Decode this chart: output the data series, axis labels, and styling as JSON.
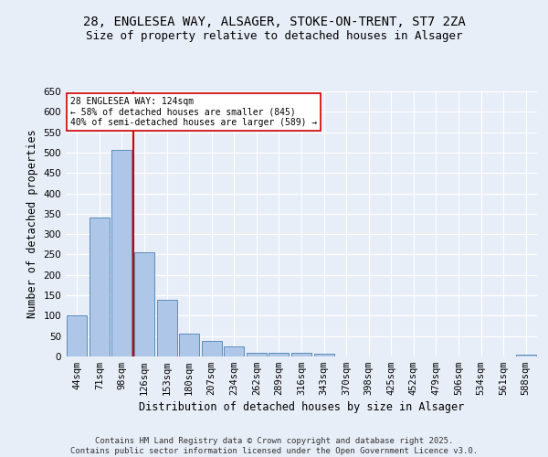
{
  "title1": "28, ENGLESEA WAY, ALSAGER, STOKE-ON-TRENT, ST7 2ZA",
  "title2": "Size of property relative to detached houses in Alsager",
  "xlabel": "Distribution of detached houses by size in Alsager",
  "ylabel": "Number of detached properties",
  "categories": [
    "44sqm",
    "71sqm",
    "98sqm",
    "126sqm",
    "153sqm",
    "180sqm",
    "207sqm",
    "234sqm",
    "262sqm",
    "289sqm",
    "316sqm",
    "343sqm",
    "370sqm",
    "398sqm",
    "425sqm",
    "452sqm",
    "479sqm",
    "506sqm",
    "534sqm",
    "561sqm",
    "588sqm"
  ],
  "values": [
    100,
    340,
    507,
    255,
    140,
    55,
    37,
    25,
    10,
    10,
    10,
    7,
    0,
    0,
    0,
    0,
    0,
    0,
    0,
    0,
    5
  ],
  "bar_color": "#aec6e8",
  "bar_edge_color": "#5b8db8",
  "vline_x": 2.5,
  "vline_color": "#cc0000",
  "annotation_text": "28 ENGLESEA WAY: 124sqm\n← 58% of detached houses are smaller (845)\n40% of semi-detached houses are larger (589) →",
  "annotation_box_color": "#ffffff",
  "annotation_box_edge": "#cc0000",
  "ylim": [
    0,
    650
  ],
  "yticks": [
    0,
    50,
    100,
    150,
    200,
    250,
    300,
    350,
    400,
    450,
    500,
    550,
    600,
    650
  ],
  "background_color": "#e8eef8",
  "plot_bg_color": "#e8eef8",
  "footer": "Contains HM Land Registry data © Crown copyright and database right 2025.\nContains public sector information licensed under the Open Government Licence v3.0.",
  "title_fontsize": 10,
  "subtitle_fontsize": 9,
  "axis_label_fontsize": 8.5,
  "tick_fontsize": 7.5,
  "footer_fontsize": 6.5
}
